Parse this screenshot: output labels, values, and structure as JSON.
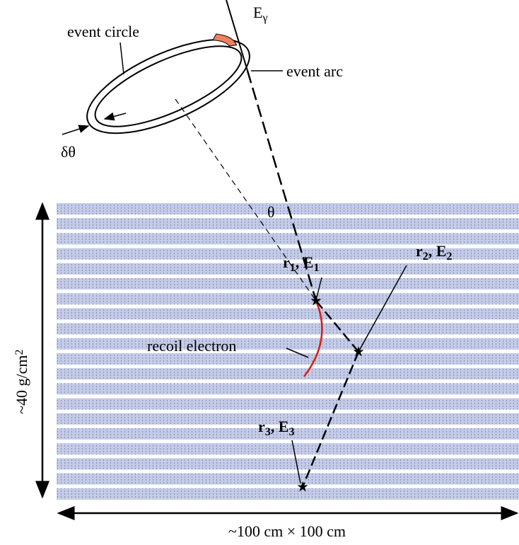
{
  "labels": {
    "event_circle": "event circle",
    "gamma_energy": [
      {
        "t": "E"
      },
      {
        "t": "γ",
        "sub": true
      }
    ],
    "event_arc": "event arc",
    "delta_theta": "δθ",
    "theta": "θ",
    "interaction_1": [
      {
        "t": "r"
      },
      {
        "t": "1",
        "sub": true
      },
      {
        "t": ", E"
      },
      {
        "t": "1",
        "sub": true
      }
    ],
    "interaction_2": [
      {
        "t": "r"
      },
      {
        "t": "2",
        "sub": true
      },
      {
        "t": ", E"
      },
      {
        "t": "2",
        "sub": true
      }
    ],
    "interaction_3": [
      {
        "t": "r"
      },
      {
        "t": "3",
        "sub": true
      },
      {
        "t": ", E"
      },
      {
        "t": "3",
        "sub": true
      }
    ],
    "recoil_electron": "recoil electron",
    "depth": [
      {
        "t": "~40 g/cm"
      },
      {
        "t": "2",
        "sup": true
      }
    ],
    "width": "~100 cm × 100 cm"
  }
}
